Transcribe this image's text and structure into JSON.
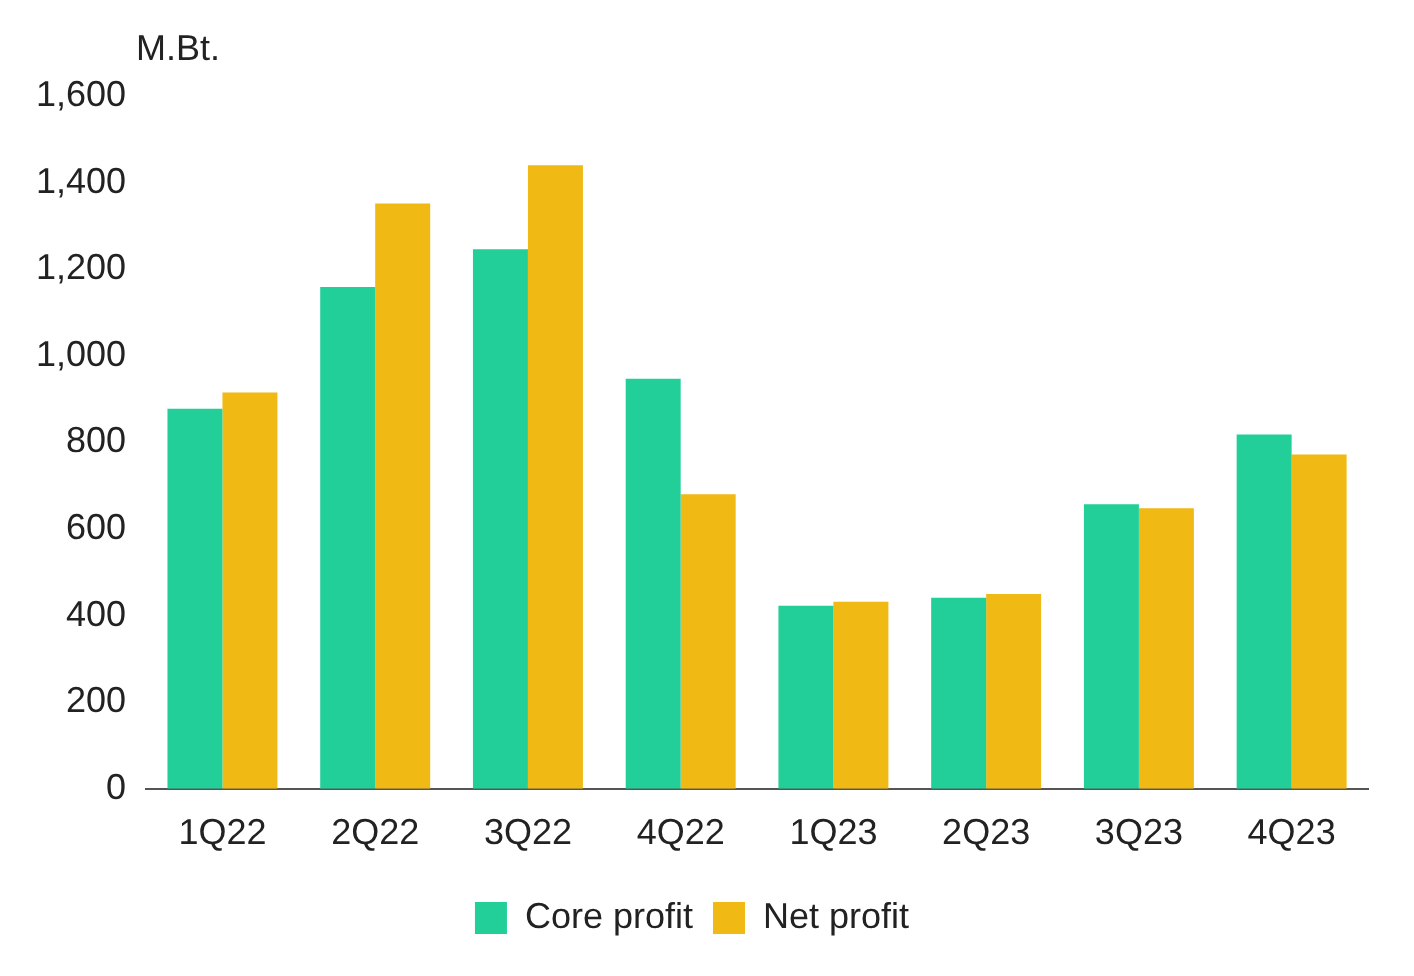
{
  "chart_data": {
    "type": "bar",
    "ylabel": "M.Bt.",
    "categories": [
      "1Q22",
      "2Q22",
      "3Q22",
      "4Q22",
      "1Q23",
      "2Q23",
      "3Q23",
      "4Q23"
    ],
    "series": [
      {
        "name": "Core profit",
        "color": "#22cf98",
        "values": [
          878,
          1159,
          1246,
          947,
          423,
          441,
          657,
          818
        ]
      },
      {
        "name": "Net profit",
        "color": "#f0b913",
        "values": [
          915,
          1352,
          1440,
          680,
          432,
          450,
          648,
          772
        ]
      }
    ],
    "ylim": [
      0,
      1600
    ],
    "yticks": [
      0,
      200,
      400,
      600,
      800,
      {
        "value": 1000,
        "label": "1,000"
      },
      {
        "value": 1200,
        "label": "1,200"
      },
      {
        "value": 1400,
        "label": "1,400"
      },
      {
        "value": 1600,
        "label": "1,600"
      }
    ],
    "grid": false,
    "legend": "bottom"
  }
}
